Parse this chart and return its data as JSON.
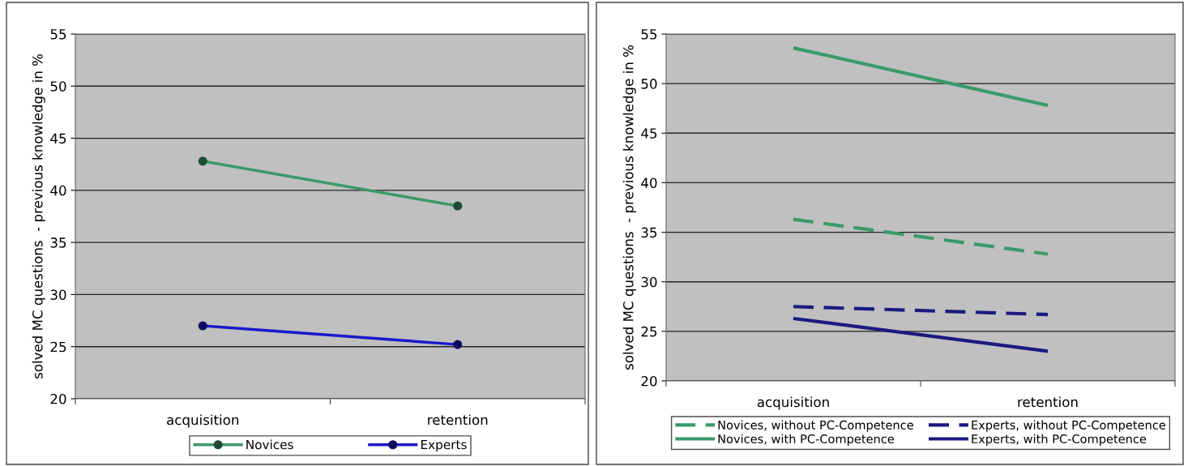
{
  "chart_data": [
    {
      "type": "line",
      "categories": [
        "acquisition",
        "retention"
      ],
      "ylabel": "solved MC questions  - previous knowledge in %",
      "ylim": [
        20,
        55
      ],
      "yticks": [
        20,
        25,
        30,
        35,
        40,
        45,
        50,
        55
      ],
      "grid": "y",
      "legend": "bottom",
      "marker": "circle",
      "series": [
        {
          "name": "Novices",
          "color": "#3a9a6a",
          "values": [
            42.8,
            38.5
          ]
        },
        {
          "name": "Experts",
          "color": "#1a1acc",
          "values": [
            27.0,
            25.2
          ]
        }
      ]
    },
    {
      "type": "line",
      "categories": [
        "acquisition",
        "retention"
      ],
      "ylabel": "solved MC questions  - previous knowledge in %",
      "ylim": [
        20,
        55
      ],
      "yticks": [
        20,
        25,
        30,
        35,
        40,
        45,
        50,
        55
      ],
      "grid": "y",
      "legend": "bottom",
      "series": [
        {
          "name": "Novices, without PC-Competence",
          "color": "#3a9a6a",
          "line_style": "dashed",
          "values": [
            36.3,
            32.8
          ]
        },
        {
          "name": "Experts, without PC-Competence",
          "color": "#1a1a80",
          "line_style": "dashed",
          "values": [
            27.5,
            26.7
          ]
        },
        {
          "name": "Novices, with PC-Competence",
          "color": "#3a9a6a",
          "line_style": "solid",
          "values": [
            53.6,
            47.8
          ]
        },
        {
          "name": "Experts, with PC-Competence",
          "color": "#1a1a80",
          "line_style": "solid",
          "values": [
            26.3,
            23.0
          ]
        }
      ]
    }
  ]
}
